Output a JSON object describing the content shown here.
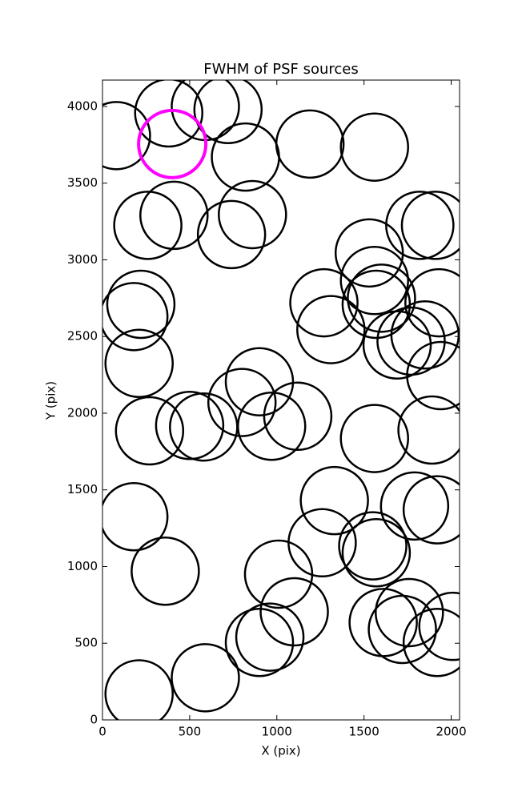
{
  "chart_data": {
    "type": "scatter",
    "title": "FWHM of PSF sources",
    "x_label": "X (pix)",
    "y_label": "Y (pix)",
    "xlim": [
      0,
      2048
    ],
    "ylim": [
      0,
      4172
    ],
    "xticks": [
      0,
      500,
      1000,
      1500,
      2000
    ],
    "yticks": [
      0,
      500,
      1000,
      1500,
      2000,
      2500,
      3000,
      3500,
      4000
    ],
    "marker": "open-circle",
    "series": [
      {
        "color": "#000000",
        "x": [
          80,
          380,
          590,
          720,
          820,
          1190,
          1560,
          260,
          410,
          740,
          860,
          1530,
          1820,
          1910,
          220,
          180,
          210,
          1270,
          1310,
          1560,
          1570,
          1600,
          1690,
          1770,
          1850,
          1930,
          1940,
          270,
          500,
          580,
          800,
          900,
          970,
          1120,
          1560,
          1890,
          180,
          1330,
          1790,
          1920,
          360,
          1010,
          1260,
          1550,
          1570,
          1100,
          960,
          900,
          1610,
          1760,
          1720,
          1920,
          2010,
          210,
          590
        ],
        "y": [
          3810,
          3958,
          4000,
          3980,
          3670,
          3755,
          3735,
          3225,
          3290,
          3165,
          3295,
          3045,
          3225,
          3225,
          2710,
          2630,
          2325,
          2720,
          2545,
          2865,
          2710,
          2750,
          2445,
          2470,
          2510,
          2720,
          2245,
          1885,
          1920,
          1910,
          2070,
          2205,
          1915,
          1980,
          1835,
          1890,
          1325,
          1430,
          1395,
          1370,
          970,
          950,
          1155,
          1135,
          1090,
          705,
          540,
          505,
          635,
          700,
          590,
          505,
          610,
          170,
          275
        ]
      },
      {
        "color": "#ff00ff",
        "x": [
          400
        ],
        "y": [
          3755
        ]
      }
    ]
  }
}
